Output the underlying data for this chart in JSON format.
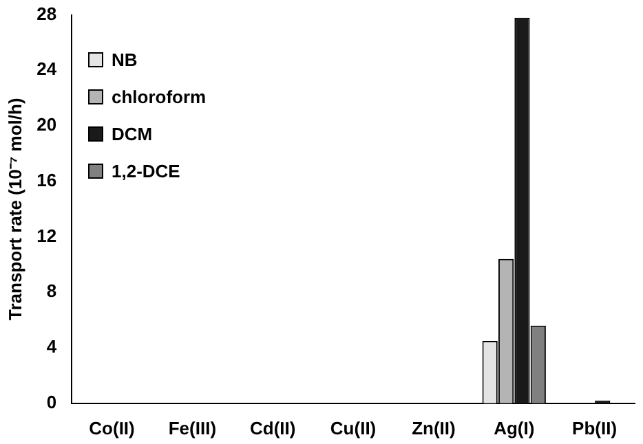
{
  "chart_data": {
    "type": "bar",
    "ylabel": "Transport rate (10⁻⁷ mol/h)",
    "categories": [
      "Co(II)",
      "Fe(III)",
      "Cd(II)",
      "Cu(II)",
      "Zn(II)",
      "Ag(I)",
      "Pb(II)"
    ],
    "series": [
      {
        "name": "NB",
        "color": "#e4e4e4",
        "values": [
          0,
          0,
          0,
          0,
          0,
          4.5,
          0
        ]
      },
      {
        "name": "chloroform",
        "color": "#b4b4b4",
        "values": [
          0,
          0,
          0,
          0,
          0,
          10.4,
          0
        ]
      },
      {
        "name": "DCM",
        "color": "#1a1a1a",
        "values": [
          0,
          0,
          0,
          0,
          0,
          27.8,
          0.2
        ]
      },
      {
        "name": "1,2-DCE",
        "color": "#808080",
        "values": [
          0,
          0,
          0,
          0,
          0,
          5.6,
          0
        ]
      }
    ],
    "ylim": [
      0,
      28
    ],
    "yticks": [
      0,
      4,
      8,
      12,
      16,
      20,
      24,
      28
    ],
    "grid": false,
    "legend": "top left"
  }
}
